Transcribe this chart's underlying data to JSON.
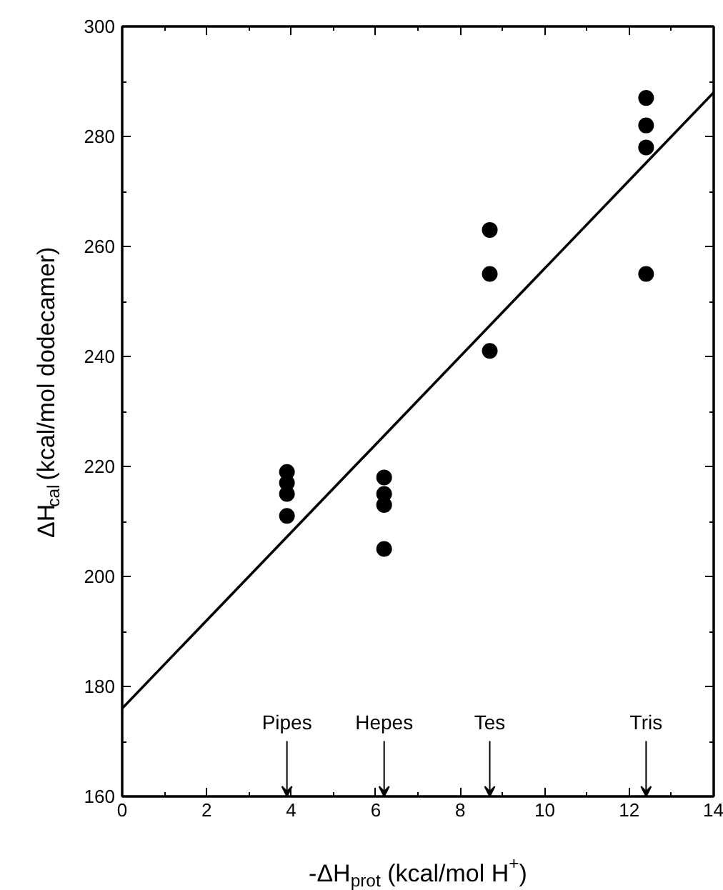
{
  "chart_data": {
    "type": "scatter",
    "xlabel": "-ΔH$_{prot}$ (kcal/mol H$^{+}$)",
    "ylabel": "ΔH$_{cal}$ (kcal/mol dodecamer)",
    "xlim": [
      0,
      14
    ],
    "xticks": [
      0,
      2,
      4,
      6,
      8,
      10,
      12,
      14
    ],
    "ylim": [
      160,
      300
    ],
    "yticks": [
      160,
      180,
      200,
      220,
      240,
      260,
      280,
      300
    ],
    "grid": false,
    "series": [
      {
        "color": "#000000",
        "marker": "circle",
        "x": [
          3.9,
          3.9,
          3.9,
          3.9,
          6.2,
          6.2,
          6.2,
          6.2,
          8.7,
          8.7,
          8.7,
          12.4,
          12.4,
          12.4,
          12.4
        ],
        "values": [
          219,
          217,
          215,
          211,
          218,
          215,
          213,
          205,
          263,
          255,
          241,
          287,
          282,
          278,
          255
        ]
      },
      {
        "type": "line",
        "color": "#000000",
        "line_style": "solid",
        "x": [
          0,
          14
        ],
        "values": [
          176,
          288
        ]
      }
    ],
    "annotations": [
      "Pipes",
      "Hepes",
      "Tes",
      "Tris"
    ]
  }
}
